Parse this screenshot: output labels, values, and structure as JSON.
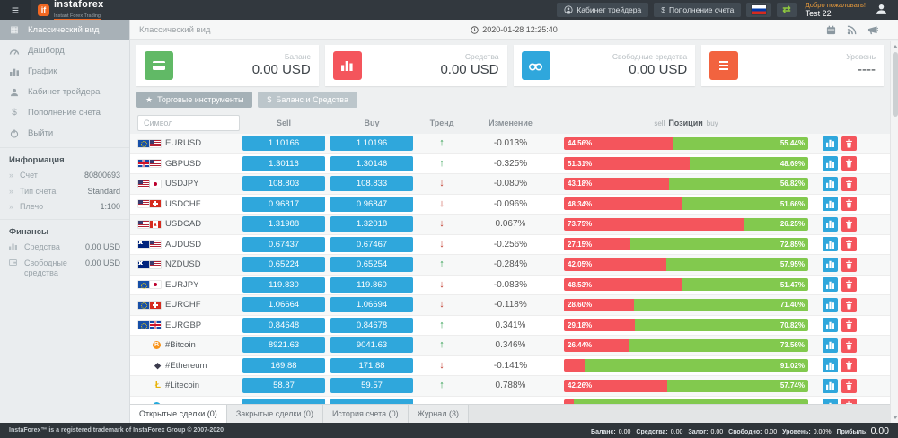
{
  "navbar": {
    "logo_text": "instaforex",
    "logo_tagline": "Instant Forex Trading",
    "trader_cabinet_label": "Кабинет трейдера",
    "deposit_symbol": "$",
    "deposit_label": "Пополнение счета",
    "welcome_text": "Добро пожаловать!",
    "username": "Test 22"
  },
  "sidebar": {
    "items": [
      {
        "label": "Классический вид",
        "active": true
      },
      {
        "label": "Дашборд"
      },
      {
        "label": "График"
      },
      {
        "label": "Кабинет трейдера"
      },
      {
        "label": "Пополнение счета"
      },
      {
        "label": "Выйти"
      }
    ],
    "info_header": "Информация",
    "info": [
      {
        "label": "Счет",
        "value": "80800693"
      },
      {
        "label": "Тип счета",
        "value": "Standard"
      },
      {
        "label": "Плечо",
        "value": "1:100"
      }
    ],
    "finance_header": "Финансы",
    "finance": [
      {
        "label": "Средства",
        "value": "0.00 USD"
      },
      {
        "label": "Свободные средства",
        "value": "0.00 USD"
      }
    ]
  },
  "main_header": {
    "title": "Классический вид",
    "datetime": "2020-01-28 12:25:40"
  },
  "cards": [
    {
      "label": "Баланс",
      "value": "0.00 USD",
      "color": "#61b966",
      "icon": "credit-card-icon"
    },
    {
      "label": "Средства",
      "value": "0.00 USD",
      "color": "#f4555c",
      "icon": "bar-chart-icon"
    },
    {
      "label": "Свободные средства",
      "value": "0.00 USD",
      "color": "#2fa7dc",
      "icon": "binoculars-icon"
    },
    {
      "label": "Уровень",
      "value": "----",
      "color": "#f2633f",
      "icon": "list-icon"
    }
  ],
  "toolbar": {
    "instruments_label": "Торговые инструменты",
    "balance_label": "Баланс и Средства"
  },
  "table": {
    "search_placeholder": "Символ",
    "headers": {
      "sell": "Sell",
      "buy": "Buy",
      "trend": "Тренд",
      "change": "Изменение",
      "positions_sell": "sell",
      "positions_title": "Позиции",
      "positions_buy": "buy"
    },
    "rows": [
      {
        "symbol": "EURUSD",
        "flags": [
          "eu",
          "us"
        ],
        "sell": "1.10166",
        "buy": "1.10196",
        "trend": "up",
        "change": "-0.013%",
        "sell_pct": 44.56,
        "buy_pct": 55.44,
        "sell_label": "44.56%",
        "buy_label": "55.44%"
      },
      {
        "symbol": "GBPUSD",
        "flags": [
          "gb",
          "us"
        ],
        "sell": "1.30116",
        "buy": "1.30146",
        "trend": "up",
        "change": "-0.325%",
        "sell_pct": 51.31,
        "buy_pct": 48.69,
        "sell_label": "51.31%",
        "buy_label": "48.69%"
      },
      {
        "symbol": "USDJPY",
        "flags": [
          "us",
          "jp"
        ],
        "sell": "108.803",
        "buy": "108.833",
        "trend": "down",
        "change": "-0.080%",
        "sell_pct": 43.18,
        "buy_pct": 56.82,
        "sell_label": "43.18%",
        "buy_label": "56.82%"
      },
      {
        "symbol": "USDCHF",
        "flags": [
          "us",
          "ch"
        ],
        "sell": "0.96817",
        "buy": "0.96847",
        "trend": "down",
        "change": "-0.096%",
        "sell_pct": 48.34,
        "buy_pct": 51.66,
        "sell_label": "48.34%",
        "buy_label": "51.66%"
      },
      {
        "symbol": "USDCAD",
        "flags": [
          "us",
          "ca"
        ],
        "sell": "1.31988",
        "buy": "1.32018",
        "trend": "down",
        "change": "0.067%",
        "sell_pct": 73.75,
        "buy_pct": 26.25,
        "sell_label": "73.75%",
        "buy_label": "26.25%"
      },
      {
        "symbol": "AUDUSD",
        "flags": [
          "au",
          "us"
        ],
        "sell": "0.67437",
        "buy": "0.67467",
        "trend": "down",
        "change": "-0.256%",
        "sell_pct": 27.15,
        "buy_pct": 72.85,
        "sell_label": "27.15%",
        "buy_label": "72.85%"
      },
      {
        "symbol": "NZDUSD",
        "flags": [
          "nz",
          "us"
        ],
        "sell": "0.65224",
        "buy": "0.65254",
        "trend": "up",
        "change": "-0.284%",
        "sell_pct": 42.05,
        "buy_pct": 57.95,
        "sell_label": "42.05%",
        "buy_label": "57.95%"
      },
      {
        "symbol": "EURJPY",
        "flags": [
          "eu",
          "jp"
        ],
        "sell": "119.830",
        "buy": "119.860",
        "trend": "down",
        "change": "-0.083%",
        "sell_pct": 48.53,
        "buy_pct": 51.47,
        "sell_label": "48.53%",
        "buy_label": "51.47%"
      },
      {
        "symbol": "EURCHF",
        "flags": [
          "eu",
          "ch"
        ],
        "sell": "1.06664",
        "buy": "1.06694",
        "trend": "down",
        "change": "-0.118%",
        "sell_pct": 28.6,
        "buy_pct": 71.4,
        "sell_label": "28.60%",
        "buy_label": "71.40%"
      },
      {
        "symbol": "EURGBP",
        "flags": [
          "eu",
          "gb"
        ],
        "sell": "0.84648",
        "buy": "0.84678",
        "trend": "up",
        "change": "0.341%",
        "sell_pct": 29.18,
        "buy_pct": 70.82,
        "sell_label": "29.18%",
        "buy_label": "70.82%"
      },
      {
        "symbol": "#Bitcoin",
        "crypto": {
          "name": "bitcoin",
          "glyph": "B",
          "cls": "btc"
        },
        "sell": "8921.63",
        "buy": "9041.63",
        "trend": "up",
        "change": "0.346%",
        "sell_pct": 26.44,
        "buy_pct": 73.56,
        "sell_label": "26.44%",
        "buy_label": "73.56%"
      },
      {
        "symbol": "#Ethereum",
        "crypto": {
          "name": "ethereum",
          "glyph": "◆",
          "cls": "eth"
        },
        "sell": "169.88",
        "buy": "171.88",
        "trend": "down",
        "change": "-0.141%",
        "sell_pct": 8.98,
        "buy_pct": 91.02,
        "sell_label": "",
        "buy_label": "91.02%"
      },
      {
        "symbol": "#Litecoin",
        "crypto": {
          "name": "litecoin",
          "glyph": "Ł",
          "cls": "ltc"
        },
        "sell": "58.87",
        "buy": "59.57",
        "trend": "up",
        "change": "0.788%",
        "sell_pct": 42.26,
        "buy_pct": 57.74,
        "sell_label": "42.26%",
        "buy_label": "57.74%"
      },
      {
        "symbol": "",
        "crypto": {
          "name": "crypto",
          "glyph": "",
          "cls": "xrp"
        },
        "sell": "",
        "buy": "",
        "trend": "",
        "change": "",
        "sell_pct": 4,
        "buy_pct": 96,
        "sell_label": "",
        "buy_label": "",
        "partial": true
      }
    ]
  },
  "tabs": [
    {
      "label": "Открытые сделки (0)",
      "active": true
    },
    {
      "label": "Закрытые сделки (0)"
    },
    {
      "label": "История счета (0)"
    },
    {
      "label": "Журнал (3)"
    }
  ],
  "footer": {
    "trademark": "InstaForex™ is a registered trademark of InstaForex Group © 2007-2020",
    "stats": [
      {
        "label": "Баланс:",
        "value": "0.00"
      },
      {
        "label": "Средства:",
        "value": "0.00"
      },
      {
        "label": "Залог:",
        "value": "0.00"
      },
      {
        "label": "Свободно:",
        "value": "0.00"
      },
      {
        "label": "Уровень:",
        "value": "0.00%"
      },
      {
        "label": "Прибыль:",
        "value": "0.00"
      }
    ]
  },
  "colors": {
    "navbar": "#32383e",
    "accent_blue": "#2fa7dc",
    "accent_red": "#f4555c",
    "accent_green": "#82c94e",
    "brand_orange": "#f26822"
  }
}
